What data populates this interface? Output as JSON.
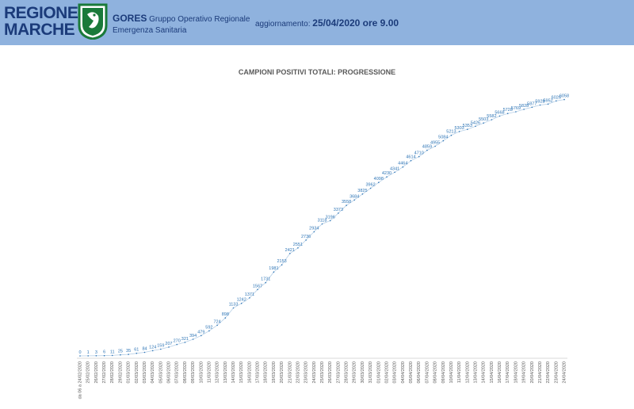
{
  "header": {
    "logo_line1": "REGIONE",
    "logo_line2": "MARCHE",
    "org_short": "GORES",
    "org_line1": "Gruppo Operativo Regionale",
    "org_line2": "Emergenza Sanitaria",
    "update_label": "aggiornamento:",
    "update_value": "25/04/2020 ore 9.00",
    "brand_color": "#8fb2de"
  },
  "chart_data": {
    "type": "line",
    "title": "CAMPIONI POSITIVI TOTALI: PROGRESSIONE",
    "series_color": "#2e75b6",
    "categories": [
      "da 06 a 24/02/2020",
      "25/02/2020",
      "26/02/2020",
      "27/02/2020",
      "28/02/2020",
      "29/02/2020",
      "01/03/2020",
      "02/03/2020",
      "03/03/2020",
      "04/03/2020",
      "05/03/2020",
      "06/03/2020",
      "07/03/2020",
      "08/03/2020",
      "09/03/2020",
      "10/03/2020",
      "11/03/2020",
      "12/03/2020",
      "13/03/2020",
      "14/03/2020",
      "15/03/2020",
      "16/03/2020",
      "17/03/2020",
      "18/03/2020",
      "19/03/2020",
      "20/03/2020",
      "21/03/2020",
      "22/03/2020",
      "23/03/2020",
      "24/03/2020",
      "25/03/2020",
      "26/03/2020",
      "27/03/2020",
      "28/03/2020",
      "29/03/2020",
      "30/03/2020",
      "31/03/2020",
      "01/04/2020",
      "02/04/2020",
      "03/04/2020",
      "04/04/2020",
      "05/04/2020",
      "06/04/2020",
      "07/04/2020",
      "08/04/2020",
      "09/04/2020",
      "10/04/2020",
      "11/04/2020",
      "12/04/2020",
      "13/04/2020",
      "14/04/2020",
      "15/04/2020",
      "16/04/2020",
      "17/04/2020",
      "18/04/2020",
      "19/04/2020",
      "20/04/2020",
      "21/04/2020",
      "22/04/2020",
      "23/04/2020",
      "24/04/2020"
    ],
    "values": [
      0,
      1,
      3,
      6,
      11,
      25,
      35,
      61,
      84,
      124,
      159,
      207,
      270,
      321,
      394,
      479,
      592,
      724,
      898,
      1133,
      1242,
      1371,
      1567,
      1731,
      1981,
      2153,
      2421,
      2551,
      2736,
      2934,
      3118,
      3196,
      3373,
      3558,
      3684,
      3825,
      3962,
      4098,
      4230,
      4341,
      4464,
      4614,
      4710,
      4859,
      4955,
      5084,
      5213,
      5303,
      5353,
      5426,
      5503,
      5582,
      5668,
      5728,
      5769,
      5828,
      5877,
      5928,
      5952,
      6026,
      6058
    ],
    "ylim": [
      0,
      6500
    ],
    "grid": false,
    "legend": "none"
  }
}
